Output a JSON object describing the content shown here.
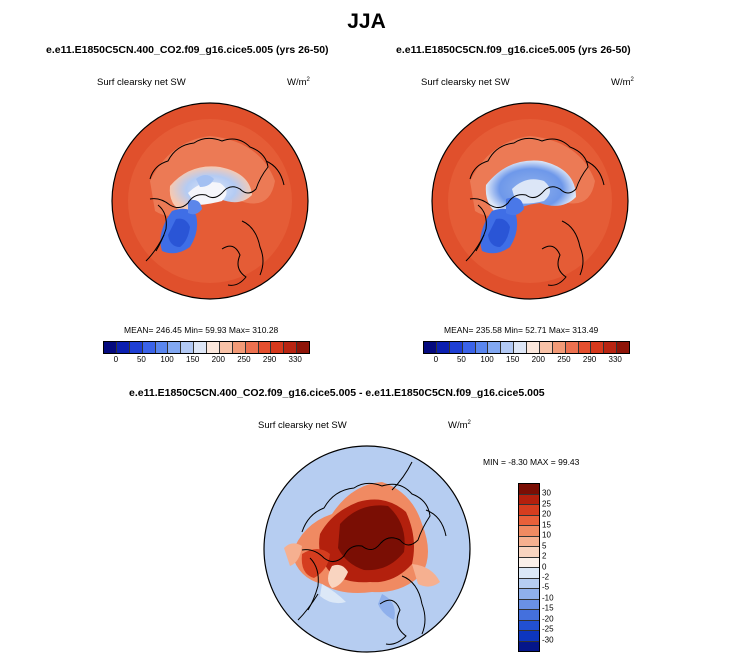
{
  "season_title": "JJA",
  "panels": {
    "left": {
      "case_title": "e.e11.E1850C5CN.400_CO2.f09_g16.cice5.005 (yrs 26-50)",
      "variable": "Surf clearsky net SW",
      "units_base": "W/m",
      "units_exp": "2",
      "stats": "MEAN= 246.45  Min=  59.93  Max= 310.28"
    },
    "right": {
      "case_title": "e.e11.E1850C5CN.f09_g16.cice5.005 (yrs 26-50)",
      "variable": "Surf clearsky net SW",
      "units_base": "W/m",
      "units_exp": "2",
      "stats": "MEAN= 235.58  Min=  52.71  Max= 313.49"
    },
    "diff": {
      "case_title": "e.e11.E1850C5CN.400_CO2.f09_g16.cice5.005 - e.e11.E1850C5CN.f09_g16.cice5.005",
      "variable": "Surf clearsky net SW",
      "units_base": "W/m",
      "units_exp": "2",
      "stats": "MIN =  -8.30 MAX =  99.43"
    }
  },
  "abs_colorbar": {
    "labels": [
      "0",
      "50",
      "100",
      "150",
      "200",
      "250",
      "290",
      "330"
    ],
    "colors": [
      "#050a7e",
      "#0b1fb0",
      "#1e3fd4",
      "#3b63e8",
      "#5a86ee",
      "#82a8f2",
      "#b2c9f4",
      "#dde6f6",
      "#fbe7dc",
      "#f8c2a7",
      "#f29a77",
      "#ec7150",
      "#e44f2e",
      "#d6391d",
      "#b82512",
      "#8e1408"
    ]
  },
  "diff_colorbar": {
    "labels": [
      "30",
      "25",
      "20",
      "15",
      "10",
      "5",
      "2",
      "0",
      "-2",
      "-5",
      "-10",
      "-15",
      "-20",
      "-25",
      "-30"
    ],
    "colors": [
      "#7a0e04",
      "#b3200d",
      "#d53d1f",
      "#e8603a",
      "#f08a62",
      "#f6b090",
      "#f9d4c0",
      "#fbf0ea",
      "#dce8f7",
      "#b6cdf1",
      "#8fb0ec",
      "#6a91e6",
      "#4470dd",
      "#2250d2",
      "#0d36bf",
      "#05168a"
    ]
  },
  "colors": {
    "ocean_abs": "#e0502c",
    "ocean_diff": "#b6cdf1",
    "coast": "#000000"
  }
}
